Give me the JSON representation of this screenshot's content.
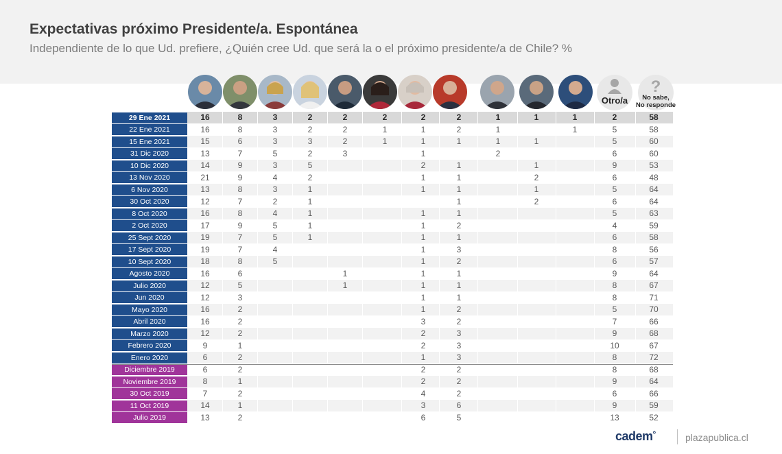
{
  "title": "Expectativas próximo Presidente/a. Espontánea",
  "subtitle": "Independiente de lo que Ud. prefiere, ¿Quién cree Ud. que será la o el próximo presidente/a de Chile? %",
  "footer": {
    "logo": "cadem",
    "site": "plazapublica.cl"
  },
  "colors": {
    "header_bg": "#f2f2f2",
    "date_blue": "#1f4e8c",
    "date_purple": "#a0349a",
    "row_alt": "#f2f2f2",
    "first_row": "#d9d9d9"
  },
  "columns": [
    {
      "key": "c1",
      "icon": "candidate-photo-icon"
    },
    {
      "key": "c2",
      "icon": "candidate-photo-icon"
    },
    {
      "key": "c3",
      "icon": "candidate-photo-icon"
    },
    {
      "key": "c4",
      "icon": "candidate-photo-icon"
    },
    {
      "key": "c5",
      "icon": "candidate-photo-icon"
    },
    {
      "key": "c6",
      "icon": "candidate-photo-icon"
    },
    {
      "key": "c7",
      "icon": "candidate-photo-icon"
    },
    {
      "key": "c8",
      "icon": "candidate-photo-icon"
    },
    {
      "key": "c9",
      "icon": "candidate-photo-icon"
    },
    {
      "key": "c10",
      "icon": "candidate-photo-icon"
    },
    {
      "key": "c11",
      "icon": "candidate-photo-icon"
    },
    {
      "key": "otro",
      "label": "Otro/a",
      "icon": "person-silhouette-icon"
    },
    {
      "key": "ns",
      "label": "No sabe,\nNo responde",
      "icon": "question-mark-icon"
    }
  ],
  "chart_data": {
    "type": "table",
    "title": "Expectativas próximo Presidente/a. Espontánea",
    "unit": "%",
    "rows": [
      {
        "date": "29 Ene 2021",
        "color": "blue",
        "highlight": true,
        "values": [
          "16",
          "8",
          "3",
          "2",
          "2",
          "2",
          "2",
          "2",
          "1",
          "1",
          "1",
          "2",
          "58"
        ]
      },
      {
        "date": "22 Ene 2021",
        "color": "blue",
        "values": [
          "16",
          "8",
          "3",
          "2",
          "2",
          "1",
          "1",
          "2",
          "1",
          "",
          "1",
          "5",
          "58"
        ]
      },
      {
        "date": "15 Ene 2021",
        "color": "blue",
        "values": [
          "15",
          "6",
          "3",
          "3",
          "2",
          "1",
          "1",
          "1",
          "1",
          "1",
          "",
          "5",
          "60"
        ]
      },
      {
        "date": "31 Dic 2020",
        "color": "blue",
        "values": [
          "13",
          "7",
          "5",
          "2",
          "3",
          "",
          "1",
          "",
          "2",
          "",
          "",
          "6",
          "60"
        ]
      },
      {
        "date": "10 Dic 2020",
        "color": "blue",
        "values": [
          "14",
          "9",
          "3",
          "5",
          "",
          "",
          "2",
          "1",
          "",
          "1",
          "",
          "9",
          "53"
        ]
      },
      {
        "date": "13 Nov 2020",
        "color": "blue",
        "values": [
          "21",
          "9",
          "4",
          "2",
          "",
          "",
          "1",
          "1",
          "",
          "2",
          "",
          "6",
          "48"
        ]
      },
      {
        "date": "6 Nov 2020",
        "color": "blue",
        "values": [
          "13",
          "8",
          "3",
          "1",
          "",
          "",
          "1",
          "1",
          "",
          "1",
          "",
          "5",
          "64"
        ]
      },
      {
        "date": "30 Oct 2020",
        "color": "blue",
        "values": [
          "12",
          "7",
          "2",
          "1",
          "",
          "",
          "",
          "1",
          "",
          "2",
          "",
          "6",
          "64"
        ]
      },
      {
        "date": "8 Oct 2020",
        "color": "blue",
        "values": [
          "16",
          "8",
          "4",
          "1",
          "",
          "",
          "1",
          "1",
          "",
          "",
          "",
          "5",
          "63"
        ]
      },
      {
        "date": "2 Oct 2020",
        "color": "blue",
        "values": [
          "17",
          "9",
          "5",
          "1",
          "",
          "",
          "1",
          "2",
          "",
          "",
          "",
          "4",
          "59"
        ]
      },
      {
        "date": "25 Sept 2020",
        "color": "blue",
        "values": [
          "19",
          "7",
          "5",
          "1",
          "",
          "",
          "1",
          "1",
          "",
          "",
          "",
          "6",
          "58"
        ]
      },
      {
        "date": "17 Sept 2020",
        "color": "blue",
        "values": [
          "19",
          "7",
          "4",
          "",
          "",
          "",
          "1",
          "3",
          "",
          "",
          "",
          "8",
          "56"
        ]
      },
      {
        "date": "10 Sept 2020",
        "color": "blue",
        "values": [
          "18",
          "8",
          "5",
          "",
          "",
          "",
          "1",
          "2",
          "",
          "",
          "",
          "6",
          "57"
        ]
      },
      {
        "date": "Agosto 2020",
        "color": "blue",
        "values": [
          "16",
          "6",
          "",
          "",
          "1",
          "",
          "1",
          "1",
          "",
          "",
          "",
          "9",
          "64"
        ]
      },
      {
        "date": "Julio 2020",
        "color": "blue",
        "values": [
          "12",
          "5",
          "",
          "",
          "1",
          "",
          "1",
          "1",
          "",
          "",
          "",
          "8",
          "67"
        ]
      },
      {
        "date": "Jun 2020",
        "color": "blue",
        "values": [
          "12",
          "3",
          "",
          "",
          "",
          "",
          "1",
          "1",
          "",
          "",
          "",
          "8",
          "71"
        ]
      },
      {
        "date": "Mayo 2020",
        "color": "blue",
        "values": [
          "16",
          "2",
          "",
          "",
          "",
          "",
          "1",
          "2",
          "",
          "",
          "",
          "5",
          "70"
        ]
      },
      {
        "date": "Abril 2020",
        "color": "blue",
        "values": [
          "16",
          "2",
          "",
          "",
          "",
          "",
          "3",
          "2",
          "",
          "",
          "",
          "7",
          "66"
        ]
      },
      {
        "date": "Marzo 2020",
        "color": "blue",
        "values": [
          "12",
          "2",
          "",
          "",
          "",
          "",
          "2",
          "3",
          "",
          "",
          "",
          "9",
          "68"
        ]
      },
      {
        "date": "Febrero 2020",
        "color": "blue",
        "values": [
          "9",
          "1",
          "",
          "",
          "",
          "",
          "2",
          "3",
          "",
          "",
          "",
          "10",
          "67"
        ]
      },
      {
        "date": "Enero 2020",
        "color": "blue",
        "values": [
          "6",
          "2",
          "",
          "",
          "",
          "",
          "1",
          "3",
          "",
          "",
          "",
          "8",
          "72"
        ]
      },
      {
        "date": "Diciembre 2019",
        "color": "purple",
        "values": [
          "6",
          "2",
          "",
          "",
          "",
          "",
          "2",
          "2",
          "",
          "",
          "",
          "8",
          "68"
        ]
      },
      {
        "date": "Noviembre 2019",
        "color": "purple",
        "values": [
          "8",
          "1",
          "",
          "",
          "",
          "",
          "2",
          "2",
          "",
          "",
          "",
          "9",
          "64"
        ]
      },
      {
        "date": "30 Oct 2019",
        "color": "purple",
        "values": [
          "7",
          "2",
          "",
          "",
          "",
          "",
          "4",
          "2",
          "",
          "",
          "",
          "6",
          "66"
        ]
      },
      {
        "date": "11 Oct 2019",
        "color": "purple",
        "values": [
          "14",
          "1",
          "",
          "",
          "",
          "",
          "3",
          "6",
          "",
          "",
          "",
          "9",
          "59"
        ]
      },
      {
        "date": "Julio 2019",
        "color": "purple",
        "values": [
          "13",
          "2",
          "",
          "",
          "",
          "",
          "6",
          "5",
          "",
          "",
          "",
          "13",
          "52"
        ]
      }
    ]
  }
}
